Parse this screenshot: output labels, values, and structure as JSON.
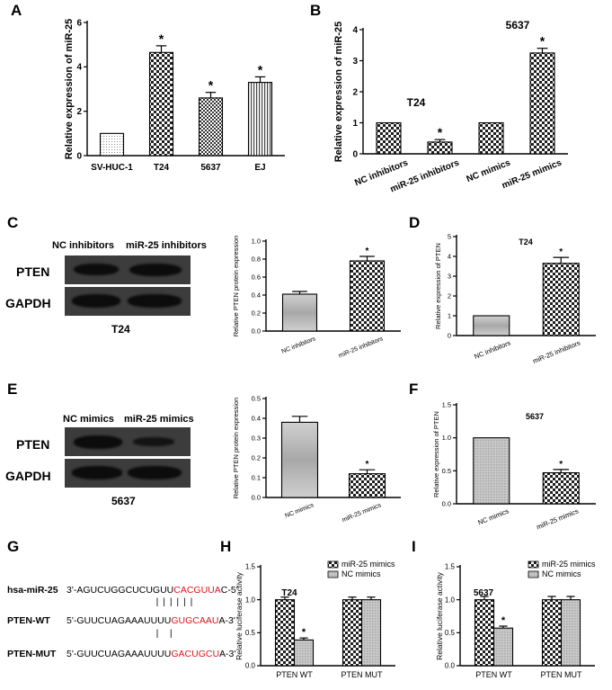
{
  "panels": {
    "A": {
      "letter": "A",
      "chart_data": {
        "type": "bar",
        "categories": [
          "SV-HUC-1",
          "T24",
          "5637",
          "EJ"
        ],
        "values": [
          1.0,
          4.65,
          2.6,
          3.3
        ],
        "errors": [
          0,
          0.3,
          0.25,
          0.25
        ],
        "significant": [
          false,
          true,
          true,
          true
        ],
        "ylabel": "Relative expression of miR-25",
        "ylim": [
          0,
          6
        ],
        "yticks": [
          0,
          2,
          4,
          6
        ],
        "marker": "*"
      }
    },
    "B": {
      "letter": "B",
      "chart_data": {
        "type": "bar",
        "categories": [
          "NC inhibitors",
          "miR-25 inhibitors",
          "NC mimics",
          "miR-25 mimics"
        ],
        "values": [
          1.0,
          0.38,
          1.0,
          3.25
        ],
        "errors": [
          0,
          0.08,
          0,
          0.15
        ],
        "significant": [
          false,
          true,
          false,
          true
        ],
        "ylabel": "Relative expression of miR-25",
        "ylim": [
          0,
          4
        ],
        "yticks": [
          0,
          1,
          2,
          3,
          4
        ],
        "group_labels": [
          "T24",
          "5637"
        ],
        "marker": "*"
      }
    },
    "C": {
      "letter": "C",
      "blot": {
        "lanes": [
          "NC inhibitors",
          "miR-25 inhibitors"
        ],
        "rows": [
          "PTEN",
          "GAPDH"
        ],
        "cell": "T24"
      },
      "chart_data": {
        "type": "bar",
        "categories": [
          "NC inhibitors",
          "miR-25 inhibitors"
        ],
        "values": [
          0.41,
          0.78
        ],
        "errors": [
          0.03,
          0.05
        ],
        "significant": [
          false,
          true
        ],
        "ylabel": "Relative PTEN protein expression",
        "ylim": [
          0,
          1.0
        ],
        "yticks": [
          0.0,
          0.2,
          0.4,
          0.6,
          0.8,
          1.0
        ],
        "marker": "*"
      }
    },
    "D": {
      "letter": "D",
      "chart_data": {
        "type": "bar",
        "title": "T24",
        "categories": [
          "NC inhibitors",
          "miR-25 inhibitors"
        ],
        "values": [
          1.0,
          3.65
        ],
        "errors": [
          0,
          0.3
        ],
        "significant": [
          false,
          true
        ],
        "ylabel": "Relative expression of PTEN",
        "ylim": [
          0,
          5
        ],
        "yticks": [
          0,
          1,
          2,
          3,
          4,
          5
        ],
        "marker": "*"
      }
    },
    "E": {
      "letter": "E",
      "blot": {
        "lanes": [
          "NC mimics",
          "miR-25 mimics"
        ],
        "rows": [
          "PTEN",
          "GAPDH"
        ],
        "cell": "5637"
      },
      "chart_data": {
        "type": "bar",
        "categories": [
          "NC mimics",
          "miR-25 mimics"
        ],
        "values": [
          0.38,
          0.12
        ],
        "errors": [
          0.03,
          0.02
        ],
        "significant": [
          false,
          true
        ],
        "ylabel": "Relative PTEN protein expression",
        "ylim": [
          0,
          0.5
        ],
        "yticks": [
          0.0,
          0.1,
          0.2,
          0.3,
          0.4,
          0.5
        ],
        "marker": "*"
      }
    },
    "F": {
      "letter": "F",
      "chart_data": {
        "type": "bar",
        "title": "5637",
        "categories": [
          "NC mimics",
          "miR-25 mimics"
        ],
        "values": [
          1.0,
          0.47
        ],
        "errors": [
          0,
          0.05
        ],
        "significant": [
          false,
          true
        ],
        "ylabel": "Relative expression of PTEN",
        "ylim": [
          0,
          1.5
        ],
        "yticks": [
          0.0,
          0.5,
          1.0,
          1.5
        ],
        "marker": "*"
      }
    },
    "G": {
      "letter": "G",
      "rows": [
        {
          "name": "hsa-miR-25",
          "pre": "3'-AGUCUGGCUCUGUU",
          "red": "CACGUUA",
          "post": "C-5'"
        },
        {
          "name": "PTEN-WT",
          "pre": "5'-GUUCUAGAAAUUUU",
          "red": "GUGCAAU",
          "post": "A-3'"
        },
        {
          "name": "PTEN-MUT",
          "pre": "5'-GUUCUAGAAAUUUU",
          "red": "GACUGCU",
          "post": "A-3'"
        }
      ],
      "pairs_wt": "||||||",
      "pairs_mut": "|   |"
    },
    "H": {
      "letter": "H",
      "chart_data": {
        "type": "bar",
        "title": "T24",
        "categories": [
          "PTEN WT",
          "PTEN MUT"
        ],
        "series": [
          {
            "name": "miR-25 mimics",
            "values": [
              1.0,
              1.0
            ],
            "errors": [
              0.04,
              0.04
            ],
            "significant": [
              false,
              false
            ]
          },
          {
            "name": "NC mimics",
            "values": [
              0.39,
              1.0
            ],
            "errors": [
              0.03,
              0.04
            ],
            "significant": [
              true,
              false
            ]
          }
        ],
        "ylabel": "Relative luciferase activity",
        "ylim": [
          0,
          1.5
        ],
        "yticks": [
          0.0,
          0.5,
          1.0,
          1.5
        ],
        "legend": "top-right",
        "marker": "*"
      }
    },
    "I": {
      "letter": "I",
      "chart_data": {
        "type": "bar",
        "title": "5637",
        "categories": [
          "PTEN WT",
          "PTEN MUT"
        ],
        "series": [
          {
            "name": "miR-25 mimics",
            "values": [
              1.0,
              1.0
            ],
            "errors": [
              0.05,
              0.05
            ],
            "significant": [
              false,
              false
            ]
          },
          {
            "name": "NC mimics",
            "values": [
              0.57,
              1.0
            ],
            "errors": [
              0.03,
              0.05
            ],
            "significant": [
              true,
              false
            ]
          }
        ],
        "ylabel": "Relative luciferase activity",
        "ylim": [
          0,
          1.5
        ],
        "yticks": [
          0.0,
          0.5,
          1.0,
          1.5
        ],
        "legend": "top-right",
        "marker": "*"
      }
    }
  },
  "fills": {
    "dots": "#d9d9d9",
    "check_dark": "#2a2a2a",
    "check_light": "#ffffff",
    "stripe": "#555555",
    "hatch_gray": "#bdbdbd"
  }
}
